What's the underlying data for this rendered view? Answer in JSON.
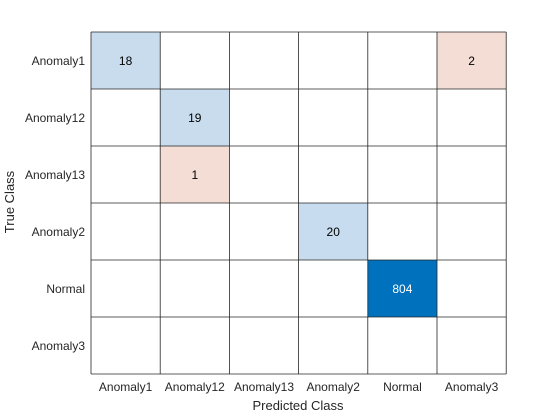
{
  "chart_data": {
    "type": "heatmap",
    "xlabel": "Predicted Class",
    "ylabel": "True Class",
    "classes": [
      "Anomaly1",
      "Anomaly12",
      "Anomaly13",
      "Anomaly2",
      "Normal",
      "Anomaly3"
    ],
    "cells": [
      {
        "true": "Anomaly1",
        "predicted": "Anomaly1",
        "value": 18,
        "kind": "correct"
      },
      {
        "true": "Anomaly1",
        "predicted": "Anomaly3",
        "value": 2,
        "kind": "error"
      },
      {
        "true": "Anomaly12",
        "predicted": "Anomaly12",
        "value": 19,
        "kind": "correct"
      },
      {
        "true": "Anomaly13",
        "predicted": "Anomaly12",
        "value": 1,
        "kind": "error"
      },
      {
        "true": "Anomaly2",
        "predicted": "Anomaly2",
        "value": 20,
        "kind": "correct"
      },
      {
        "true": "Normal",
        "predicted": "Normal",
        "value": 804,
        "kind": "correct"
      }
    ],
    "colors": {
      "correct_low": "#c8dcee",
      "correct_high": "#0072bd",
      "error_low": "#f4ddd4",
      "grid": "#262626",
      "text_dark": "#000000",
      "text_light": "#ffffff"
    }
  }
}
